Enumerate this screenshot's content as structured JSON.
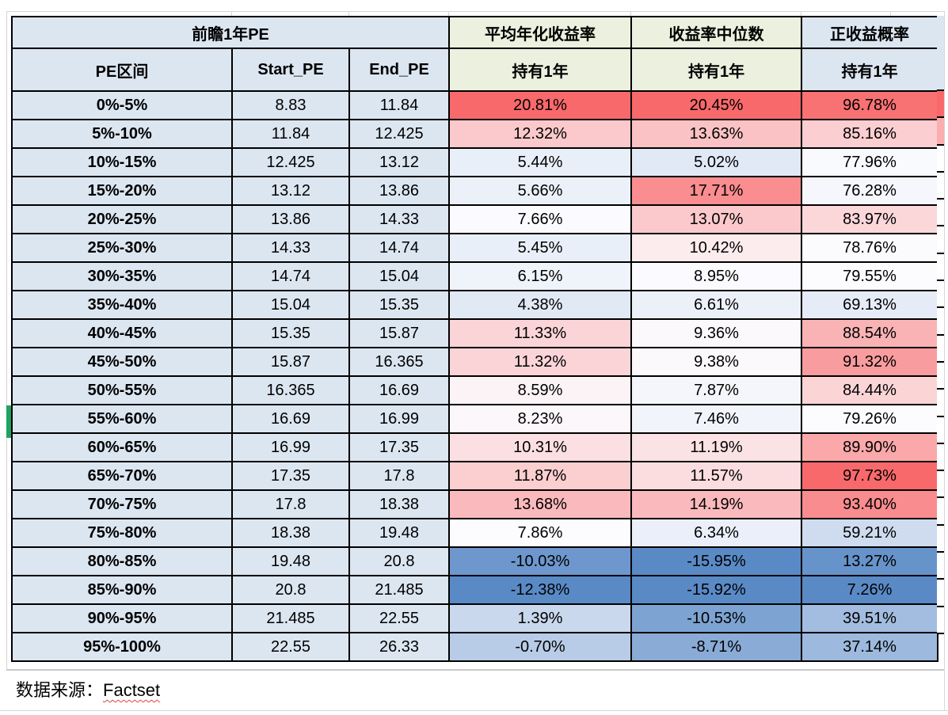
{
  "table": {
    "header": {
      "group_pe": "前瞻1年PE",
      "avg_return": "平均年化收益率",
      "median_return": "收益率中位数",
      "positive_prob": "正收益概率",
      "pe_range": "PE区间",
      "start_pe": "Start_PE",
      "end_pe": "End_PE",
      "hold_1y": "持有1年"
    },
    "rows": [
      {
        "range": "0%-5%",
        "start": "8.83",
        "end": "11.84",
        "avg": "20.81%",
        "median": "20.45%",
        "positive": "96.78%"
      },
      {
        "range": "5%-10%",
        "start": "11.84",
        "end": "12.425",
        "avg": "12.32%",
        "median": "13.63%",
        "positive": "85.16%"
      },
      {
        "range": "10%-15%",
        "start": "12.425",
        "end": "13.12",
        "avg": "5.44%",
        "median": "5.02%",
        "positive": "77.96%"
      },
      {
        "range": "15%-20%",
        "start": "13.12",
        "end": "13.86",
        "avg": "5.66%",
        "median": "17.71%",
        "positive": "76.28%"
      },
      {
        "range": "20%-25%",
        "start": "13.86",
        "end": "14.33",
        "avg": "7.66%",
        "median": "13.07%",
        "positive": "83.97%"
      },
      {
        "range": "25%-30%",
        "start": "14.33",
        "end": "14.74",
        "avg": "5.45%",
        "median": "10.42%",
        "positive": "78.76%"
      },
      {
        "range": "30%-35%",
        "start": "14.74",
        "end": "15.04",
        "avg": "6.15%",
        "median": "8.95%",
        "positive": "79.55%"
      },
      {
        "range": "35%-40%",
        "start": "15.04",
        "end": "15.35",
        "avg": "4.38%",
        "median": "6.61%",
        "positive": "69.13%"
      },
      {
        "range": "40%-45%",
        "start": "15.35",
        "end": "15.87",
        "avg": "11.33%",
        "median": "9.36%",
        "positive": "88.54%"
      },
      {
        "range": "45%-50%",
        "start": "15.87",
        "end": "16.365",
        "avg": "11.32%",
        "median": "9.38%",
        "positive": "91.32%"
      },
      {
        "range": "50%-55%",
        "start": "16.365",
        "end": "16.69",
        "avg": "8.59%",
        "median": "7.87%",
        "positive": "84.44%"
      },
      {
        "range": "55%-60%",
        "start": "16.69",
        "end": "16.99",
        "avg": "8.23%",
        "median": "7.46%",
        "positive": "79.26%"
      },
      {
        "range": "60%-65%",
        "start": "16.99",
        "end": "17.35",
        "avg": "10.31%",
        "median": "11.19%",
        "positive": "89.90%"
      },
      {
        "range": "65%-70%",
        "start": "17.35",
        "end": "17.8",
        "avg": "11.87%",
        "median": "11.57%",
        "positive": "97.73%"
      },
      {
        "range": "70%-75%",
        "start": "17.8",
        "end": "18.38",
        "avg": "13.68%",
        "median": "14.19%",
        "positive": "93.40%"
      },
      {
        "range": "75%-80%",
        "start": "18.38",
        "end": "19.48",
        "avg": "7.86%",
        "median": "6.34%",
        "positive": "59.21%"
      },
      {
        "range": "80%-85%",
        "start": "19.48",
        "end": "20.8",
        "avg": "-10.03%",
        "median": "-15.95%",
        "positive": "13.27%"
      },
      {
        "range": "85%-90%",
        "start": "20.8",
        "end": "21.485",
        "avg": "-12.38%",
        "median": "-15.92%",
        "positive": "7.26%"
      },
      {
        "range": "90%-95%",
        "start": "21.485",
        "end": "22.55",
        "avg": "1.39%",
        "median": "-10.53%",
        "positive": "39.51%"
      },
      {
        "range": "95%-100%",
        "start": "22.55",
        "end": "26.33",
        "avg": "-0.70%",
        "median": "-8.71%",
        "positive": "37.14%"
      }
    ]
  },
  "source": {
    "label": "数据来源：",
    "value": "Factset"
  },
  "colors": {
    "cell_blue": "#DCE6F1",
    "cell_green": "#EBF1DE",
    "scale_negative_blue": "#5A8AC6",
    "scale_middle_white": "#FCFCFF",
    "scale_positive_red": "#F8696B",
    "selection_green": "#1EA362",
    "gridline_gray": "#D6D6D6",
    "border_black": "#000000",
    "spellcheck_red": "#E0443A"
  },
  "right_strip": {
    "header": "#DCE6F1",
    "rows": [
      "#F8696B",
      "#FBADAF",
      "#FFFFFF",
      "#FFFFFF",
      "#FFFFFF",
      "#FFFFFF",
      "#FFFFFF",
      "#FFFFFF",
      "#FFFFFF",
      "#FFFFFF",
      "#FFFFFF",
      "#FFFFFF",
      "#FFFFFF",
      "#FFFFFF",
      "#FFFFFF",
      "#FFFFFF",
      "#FFFFFF",
      "#FFFFFF",
      "#FFFFFF",
      "#FFFFFF"
    ]
  },
  "chart_data": {
    "type": "table",
    "columns": [
      "PE区间",
      "Start_PE",
      "End_PE",
      "平均年化收益率 持有1年",
      "收益率中位数 持有1年",
      "正收益概率 持有1年"
    ],
    "rows": [
      [
        "0%-5%",
        8.83,
        11.84,
        "20.81%",
        "20.45%",
        "96.78%"
      ],
      [
        "5%-10%",
        11.84,
        12.425,
        "12.32%",
        "13.63%",
        "85.16%"
      ],
      [
        "10%-15%",
        12.425,
        13.12,
        "5.44%",
        "5.02%",
        "77.96%"
      ],
      [
        "15%-20%",
        13.12,
        13.86,
        "5.66%",
        "17.71%",
        "76.28%"
      ],
      [
        "20%-25%",
        13.86,
        14.33,
        "7.66%",
        "13.07%",
        "83.97%"
      ],
      [
        "25%-30%",
        14.33,
        14.74,
        "5.45%",
        "10.42%",
        "78.76%"
      ],
      [
        "30%-35%",
        14.74,
        15.04,
        "6.15%",
        "8.95%",
        "79.55%"
      ],
      [
        "35%-40%",
        15.04,
        15.35,
        "4.38%",
        "6.61%",
        "69.13%"
      ],
      [
        "40%-45%",
        15.35,
        15.87,
        "11.33%",
        "9.36%",
        "88.54%"
      ],
      [
        "45%-50%",
        15.87,
        16.365,
        "11.32%",
        "9.38%",
        "91.32%"
      ],
      [
        "50%-55%",
        16.365,
        16.69,
        "8.59%",
        "7.87%",
        "84.44%"
      ],
      [
        "55%-60%",
        16.69,
        16.99,
        "8.23%",
        "7.46%",
        "79.26%"
      ],
      [
        "60%-65%",
        16.99,
        17.35,
        "10.31%",
        "11.19%",
        "89.90%"
      ],
      [
        "65%-70%",
        17.35,
        17.8,
        "11.87%",
        "11.57%",
        "97.73%"
      ],
      [
        "70%-75%",
        17.8,
        18.38,
        "13.68%",
        "14.19%",
        "93.40%"
      ],
      [
        "75%-80%",
        18.38,
        19.48,
        "7.86%",
        "6.34%",
        "59.21%"
      ],
      [
        "80%-85%",
        19.48,
        20.8,
        "-10.03%",
        "-15.95%",
        "13.27%"
      ],
      [
        "85%-90%",
        20.8,
        21.485,
        "-12.38%",
        "-15.92%",
        "7.26%"
      ],
      [
        "90%-95%",
        21.485,
        22.55,
        "1.39%",
        "-10.53%",
        "39.51%"
      ],
      [
        "95%-100%",
        22.55,
        26.33,
        "-0.70%",
        "-8.71%",
        "37.14%"
      ]
    ],
    "conditional_format": "3-color scale per column: min=#5A8AC6 (blue), 50th percentile=#FCFCFF (white), max=#F8696B (red)"
  }
}
